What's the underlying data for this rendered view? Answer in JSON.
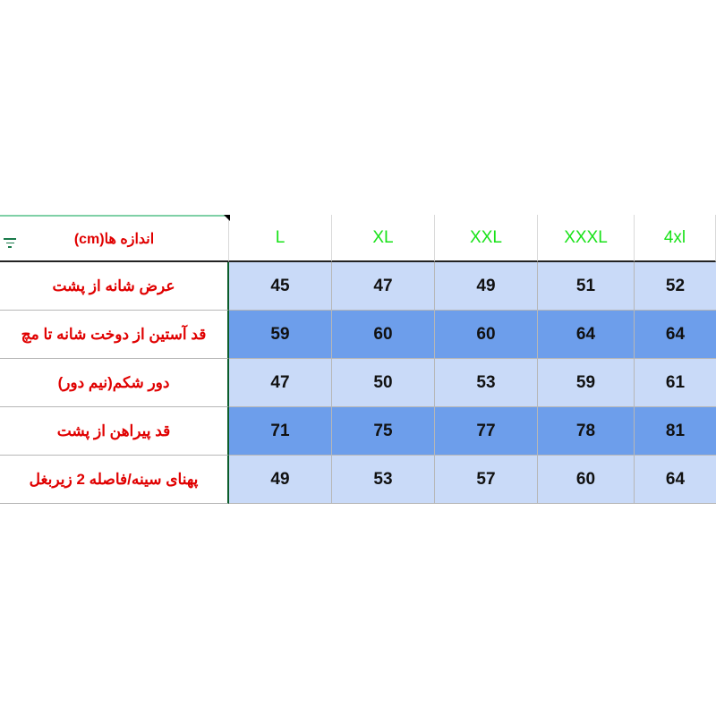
{
  "header": {
    "label": "اندازه ها(cm)",
    "sizes": [
      "L",
      "XL",
      "XXL",
      "XXXL",
      "4xl"
    ]
  },
  "rows": [
    {
      "label": "عرض شانه از پشت",
      "values": [
        "45",
        "47",
        "49",
        "51",
        "52"
      ],
      "shade": "light"
    },
    {
      "label": "قد آستین از دوخت شانه تا مچ",
      "values": [
        "59",
        "60",
        "60",
        "64",
        "64"
      ],
      "shade": "dark"
    },
    {
      "label": "دور شکم(نیم دور)",
      "values": [
        "47",
        "50",
        "53",
        "59",
        "61"
      ],
      "shade": "light"
    },
    {
      "label": "قد پیراهن از پشت",
      "values": [
        "71",
        "75",
        "77",
        "78",
        "81"
      ],
      "shade": "dark"
    },
    {
      "label": "پهنای سینه/فاصله 2 زیربغل",
      "values": [
        "49",
        "53",
        "57",
        "60",
        "64"
      ],
      "shade": "light"
    }
  ],
  "colors": {
    "label_text": "#e00000",
    "size_header_text": "#19e219",
    "light_fill": "#c9daf8",
    "dark_fill": "#6d9eeb"
  },
  "icons": {
    "filter": "filter-icon"
  }
}
